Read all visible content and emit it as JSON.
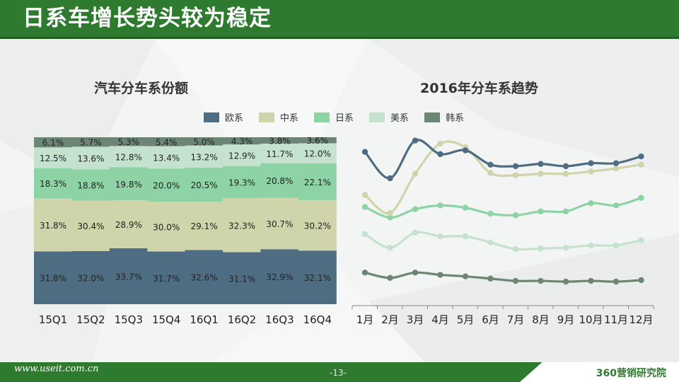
{
  "page_title": "日系车增长势头较为稳定",
  "footer": {
    "url": "www.useit.com.cn",
    "page": "-13-",
    "brand": "360营销研究院"
  },
  "colors": {
    "欧系": "#4e6d82",
    "中系": "#cfd4aa",
    "日系": "#8dd3a6",
    "美系": "#c5e2cf",
    "韩系": "#6d8574"
  },
  "chart_data": [
    {
      "type": "bar",
      "stacked": true,
      "title": "汽车分车系份额",
      "categories": [
        "15Q1",
        "15Q2",
        "15Q3",
        "15Q4",
        "16Q1",
        "16Q2",
        "16Q3",
        "16Q4"
      ],
      "series": [
        {
          "name": "欧系",
          "values": [
            31.8,
            32.0,
            33.7,
            31.7,
            32.6,
            31.1,
            32.9,
            32.1
          ]
        },
        {
          "name": "中系",
          "values": [
            31.8,
            30.4,
            28.9,
            30.0,
            29.1,
            32.3,
            30.7,
            30.2
          ]
        },
        {
          "name": "日系",
          "values": [
            18.3,
            18.8,
            19.8,
            20.0,
            20.5,
            19.3,
            20.8,
            22.1
          ]
        },
        {
          "name": "美系",
          "values": [
            12.5,
            13.6,
            12.8,
            13.4,
            13.2,
            12.9,
            11.7,
            12.0
          ]
        },
        {
          "name": "韩系",
          "values": [
            6.1,
            5.7,
            5.3,
            5.4,
            5.0,
            4.3,
            3.8,
            3.6
          ]
        }
      ],
      "legend": [
        "欧系",
        "中系",
        "日系",
        "美系",
        "韩系"
      ],
      "legend_position": "top"
    },
    {
      "type": "line",
      "title": "2016年分车系趋势",
      "categories": [
        "1月",
        "2月",
        "3月",
        "4月",
        "5月",
        "6月",
        "7月",
        "8月",
        "9月",
        "10月",
        "11月",
        "12月"
      ],
      "series": [
        {
          "name": "欧系",
          "values": [
            33.5,
            30.0,
            35.0,
            33.2,
            33.7,
            31.8,
            31.6,
            31.9,
            31.6,
            32.0,
            32.0,
            32.9
          ]
        },
        {
          "name": "中系",
          "values": [
            27.8,
            25.4,
            30.6,
            34.6,
            34.1,
            30.7,
            30.4,
            30.6,
            30.6,
            30.9,
            31.3,
            31.8
          ]
        },
        {
          "name": "日系",
          "values": [
            26.2,
            24.8,
            25.9,
            26.4,
            26.1,
            25.3,
            25.1,
            25.6,
            25.6,
            26.7,
            26.4,
            27.4
          ]
        },
        {
          "name": "美系",
          "values": [
            22.6,
            20.8,
            22.8,
            22.3,
            22.3,
            21.5,
            20.6,
            20.7,
            20.8,
            21.1,
            21.1,
            21.8
          ]
        },
        {
          "name": "韩系",
          "values": [
            17.5,
            16.8,
            17.5,
            17.2,
            17.0,
            16.7,
            16.4,
            16.4,
            16.3,
            16.4,
            16.3,
            16.5
          ]
        }
      ],
      "y_axis_visible": false
    }
  ]
}
